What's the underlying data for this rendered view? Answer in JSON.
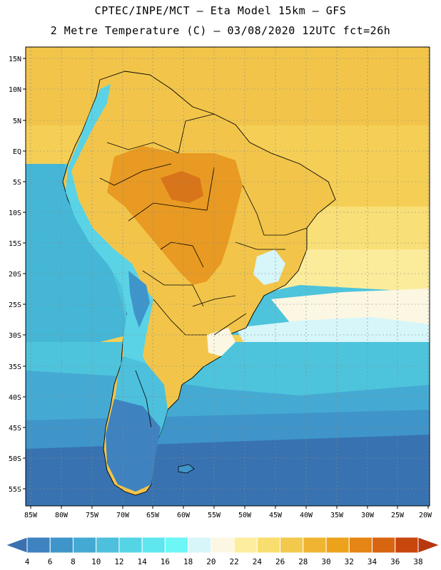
{
  "title_line1": "CPTEC/INPE/MCT –  Eta Model 15km – GFS",
  "title_line2": "2 Metre Temperature (C) – 03/08/2020 12UTC fct=26h",
  "lat_labels": [
    "15N",
    "10N",
    "5N",
    "EQ",
    "5S",
    "10S",
    "15S",
    "20S",
    "25S",
    "30S",
    "35S",
    "40S",
    "45S",
    "50S",
    "55S"
  ],
  "lon_labels": [
    "85W",
    "80W",
    "75W",
    "70W",
    "65W",
    "60W",
    "55W",
    "50W",
    "45W",
    "40W",
    "35W",
    "30W",
    "25W",
    "20W"
  ],
  "colorbar": {
    "labels": [
      "4",
      "6",
      "8",
      "10",
      "12",
      "14",
      "16",
      "18",
      "20",
      "22",
      "24",
      "26",
      "28",
      "30",
      "32",
      "34",
      "36",
      "38"
    ],
    "colors": [
      "#3a72b0",
      "#3e82c0",
      "#3f95c9",
      "#45aad3",
      "#4cc0dc",
      "#55d4e6",
      "#60e6ef",
      "#6cf6f6",
      "#d6f6fa",
      "#fcf7e3",
      "#fcee9e",
      "#f8de6e",
      "#f2c94c",
      "#efb532",
      "#eda21c",
      "#e48516",
      "#d86510",
      "#c7460c",
      "#b8370c"
    ]
  },
  "legend_colors": {
    "ocean_cold": "#2f5fa8",
    "ocean_cool": "#3f8fc7",
    "ocean_mild": "#4ec4dc",
    "ocean_warm": "#f6d460",
    "land_hot": "#e99a22",
    "land_warm": "#f2c14a",
    "andes": "#5ad3e6"
  }
}
